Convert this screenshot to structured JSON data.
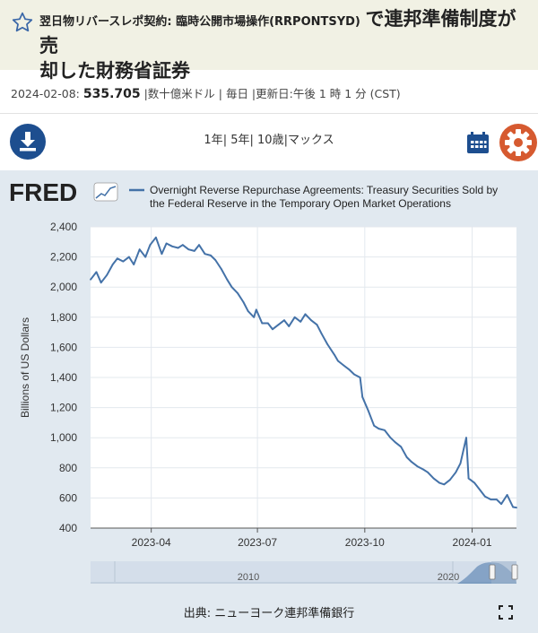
{
  "header": {
    "title_small": "翌日物リバースレポ契約: 臨時公開市場操作(RRPONTSYD)",
    "title_big_1": "で連邦準備制度が売",
    "title_big_2": "却した財務省証券"
  },
  "info": {
    "date": "2024-02-08:",
    "value": "535.705",
    "meta": "|数十億米ドル | 毎日 |更新日:午後 1 時 1 分 (CST)"
  },
  "toolbar": {
    "range_1y": "1年",
    "range_5y": "5年",
    "range_10y": "10歳",
    "range_max": "マックス",
    "sep": "|",
    "download_icon": "download-icon",
    "calendar_icon": "calendar-icon",
    "settings_icon": "gear-icon"
  },
  "colors": {
    "line": "#4472a8",
    "panel_bg": "#e1e9f0",
    "title_bg": "#f1f1e4",
    "download": "#1d4e8f",
    "settings": "#d65a30"
  },
  "brand": "FRED",
  "footer": {
    "source": "出典: ニューヨーク連邦準備銀行",
    "expand_icon": "expand-icon"
  },
  "chart_data": {
    "type": "line",
    "legend": "Overnight Reverse Repurchase Agreements: Treasury Securities Sold by the Federal Reserve in the Temporary Open Market Operations",
    "ylabel": "Billions of US Dollars",
    "xlabel": "",
    "ylim": [
      400,
      2400
    ],
    "yticks": [
      400,
      600,
      800,
      1000,
      1200,
      1400,
      1600,
      1800,
      2000,
      2200,
      2400
    ],
    "ytick_labels": [
      "400",
      "600",
      "800",
      "1,000",
      "1,200",
      "1,400",
      "1,600",
      "1,800",
      "2,000",
      "2,200",
      "2,400"
    ],
    "xlim": [
      "2023-02-08",
      "2024-02-08"
    ],
    "xtick_labels": [
      "2023-04",
      "2023-07",
      "2023-10",
      "2024-01"
    ],
    "xtick_dates": [
      "2023-04-01",
      "2023-07-01",
      "2023-10-01",
      "2024-01-01"
    ],
    "grid": true,
    "legend_position": "top",
    "series": [
      {
        "x": [
          "2023-02-08",
          "2023-02-13",
          "2023-02-17",
          "2023-02-22",
          "2023-02-27",
          "2023-03-03",
          "2023-03-08",
          "2023-03-13",
          "2023-03-17",
          "2023-03-22",
          "2023-03-27",
          "2023-03-31",
          "2023-04-05",
          "2023-04-10",
          "2023-04-14",
          "2023-04-19",
          "2023-04-24",
          "2023-04-28",
          "2023-05-03",
          "2023-05-08",
          "2023-05-12",
          "2023-05-17",
          "2023-05-22",
          "2023-05-26",
          "2023-05-31",
          "2023-06-05",
          "2023-06-09",
          "2023-06-14",
          "2023-06-19",
          "2023-06-23",
          "2023-06-28",
          "2023-06-30",
          "2023-07-05",
          "2023-07-10",
          "2023-07-14",
          "2023-07-19",
          "2023-07-24",
          "2023-07-28",
          "2023-08-02",
          "2023-08-07",
          "2023-08-11",
          "2023-08-16",
          "2023-08-21",
          "2023-08-25",
          "2023-08-30",
          "2023-09-05",
          "2023-09-08",
          "2023-09-13",
          "2023-09-18",
          "2023-09-22",
          "2023-09-27",
          "2023-09-29",
          "2023-10-04",
          "2023-10-09",
          "2023-10-13",
          "2023-10-18",
          "2023-10-23",
          "2023-10-27",
          "2023-11-01",
          "2023-11-06",
          "2023-11-10",
          "2023-11-15",
          "2023-11-20",
          "2023-11-24",
          "2023-11-29",
          "2023-12-04",
          "2023-12-08",
          "2023-12-13",
          "2023-12-18",
          "2023-12-22",
          "2023-12-27",
          "2023-12-29",
          "2024-01-03",
          "2024-01-08",
          "2024-01-12",
          "2024-01-17",
          "2024-01-22",
          "2024-01-26",
          "2024-01-31",
          "2024-02-05",
          "2024-02-08"
        ],
        "values": [
          2050,
          2100,
          2030,
          2080,
          2150,
          2190,
          2170,
          2200,
          2150,
          2250,
          2200,
          2280,
          2330,
          2220,
          2290,
          2270,
          2260,
          2280,
          2250,
          2240,
          2280,
          2220,
          2210,
          2180,
          2120,
          2050,
          2000,
          1960,
          1900,
          1840,
          1800,
          1850,
          1760,
          1760,
          1720,
          1750,
          1780,
          1740,
          1800,
          1770,
          1820,
          1780,
          1750,
          1690,
          1620,
          1550,
          1510,
          1480,
          1450,
          1420,
          1400,
          1270,
          1180,
          1080,
          1060,
          1050,
          1000,
          970,
          940,
          870,
          840,
          810,
          790,
          770,
          730,
          700,
          690,
          720,
          770,
          830,
          1000,
          730,
          700,
          650,
          610,
          590,
          590,
          560,
          620,
          540,
          536
        ]
      }
    ]
  }
}
